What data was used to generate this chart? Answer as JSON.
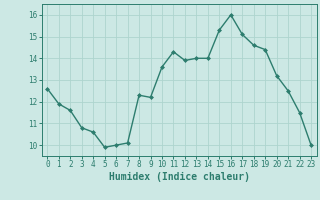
{
  "x": [
    0,
    1,
    2,
    3,
    4,
    5,
    6,
    7,
    8,
    9,
    10,
    11,
    12,
    13,
    14,
    15,
    16,
    17,
    18,
    19,
    20,
    21,
    22,
    23
  ],
  "y": [
    12.6,
    11.9,
    11.6,
    10.8,
    10.6,
    9.9,
    10.0,
    10.1,
    12.3,
    12.2,
    13.6,
    14.3,
    13.9,
    14.0,
    14.0,
    15.3,
    16.0,
    15.1,
    14.6,
    14.4,
    13.2,
    12.5,
    11.5,
    10.0
  ],
  "line_color": "#2d7d6e",
  "marker": "D",
  "marker_size": 2,
  "bg_color": "#cce8e4",
  "grid_color": "#aed4ce",
  "tick_color": "#2d7d6e",
  "xlabel": "Humidex (Indice chaleur)",
  "xlabel_fontsize": 7,
  "ylim": [
    9.5,
    16.5
  ],
  "xlim": [
    -0.5,
    23.5
  ],
  "yticks": [
    10,
    11,
    12,
    13,
    14,
    15,
    16
  ],
  "xticks": [
    0,
    1,
    2,
    3,
    4,
    5,
    6,
    7,
    8,
    9,
    10,
    11,
    12,
    13,
    14,
    15,
    16,
    17,
    18,
    19,
    20,
    21,
    22,
    23
  ],
  "tick_fontsize": 5.5,
  "linewidth": 1.0
}
